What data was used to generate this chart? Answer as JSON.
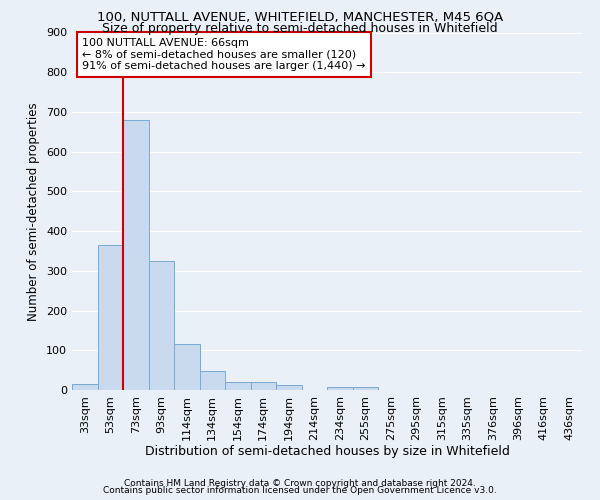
{
  "title1": "100, NUTTALL AVENUE, WHITEFIELD, MANCHESTER, M45 6QA",
  "title2": "Size of property relative to semi-detached houses in Whitefield",
  "xlabel": "Distribution of semi-detached houses by size in Whitefield",
  "ylabel": "Number of semi-detached properties",
  "footnote1": "Contains HM Land Registry data © Crown copyright and database right 2024.",
  "footnote2": "Contains public sector information licensed under the Open Government Licence v3.0.",
  "bins": [
    "33sqm",
    "53sqm",
    "73sqm",
    "93sqm",
    "114sqm",
    "134sqm",
    "154sqm",
    "174sqm",
    "194sqm",
    "214sqm",
    "234sqm",
    "255sqm",
    "275sqm",
    "295sqm",
    "315sqm",
    "335sqm",
    "376sqm",
    "396sqm",
    "416sqm",
    "436sqm"
  ],
  "values": [
    15,
    365,
    680,
    325,
    115,
    48,
    20,
    20,
    12,
    0,
    8,
    8,
    0,
    0,
    0,
    0,
    0,
    0,
    0,
    0
  ],
  "bar_color": "#c9d9ee",
  "bar_edge_color": "#7aaad0",
  "vline_color": "#cc0000",
  "annotation_line1": "100 NUTTALL AVENUE: 66sqm",
  "annotation_line2": "← 8% of semi-detached houses are smaller (120)",
  "annotation_line3": "91% of semi-detached houses are larger (1,440) →",
  "annotation_box_color": "#ffffff",
  "annotation_box_edge": "#cc0000",
  "ylim": [
    0,
    900
  ],
  "yticks": [
    0,
    100,
    200,
    300,
    400,
    500,
    600,
    700,
    800,
    900
  ],
  "bg_color": "#eaf0f8",
  "grid_color": "#ffffff",
  "title1_fontsize": 9.5,
  "title2_fontsize": 9,
  "xlabel_fontsize": 9,
  "ylabel_fontsize": 8.5,
  "tick_fontsize": 8,
  "annotation_fontsize": 8
}
